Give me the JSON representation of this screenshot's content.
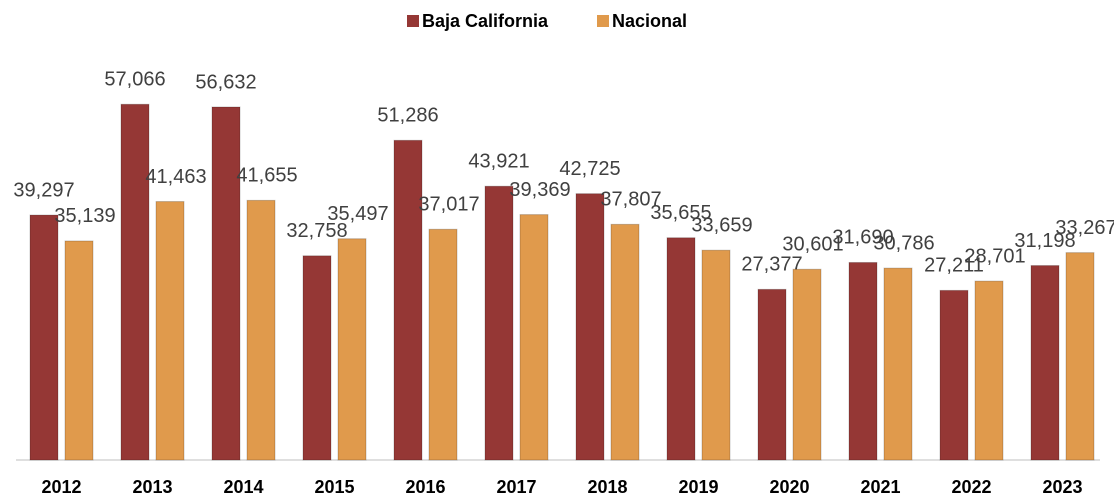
{
  "chart_data": {
    "type": "bar",
    "categories": [
      "2012",
      "2013",
      "2014",
      "2015",
      "2016",
      "2017",
      "2018",
      "2019",
      "2020",
      "2021",
      "2022",
      "2023"
    ],
    "series": [
      {
        "name": "Baja California",
        "color": "#953735",
        "values": [
          39297,
          57066,
          56632,
          32758,
          51286,
          43921,
          42725,
          35655,
          27377,
          31690,
          27211,
          31198
        ],
        "value_labels": [
          "39,297",
          "57,066",
          "56,632",
          "32,758",
          "51,286",
          "43,921",
          "42,725",
          "35,655",
          "27,377",
          "31,690",
          "27,211",
          "31,198"
        ]
      },
      {
        "name": "Nacional",
        "color": "#e09a4c",
        "values": [
          35139,
          41463,
          41655,
          35497,
          37017,
          39369,
          37807,
          33659,
          30601,
          30786,
          28701,
          33267
        ],
        "value_labels": [
          "35,139",
          "41,463",
          "41,655",
          "35,497",
          "37,017",
          "39,369",
          "37,807",
          "33,659",
          "30,601",
          "30,786",
          "28,701",
          "33,267"
        ]
      }
    ],
    "ylim": [
      0,
      60000
    ]
  }
}
